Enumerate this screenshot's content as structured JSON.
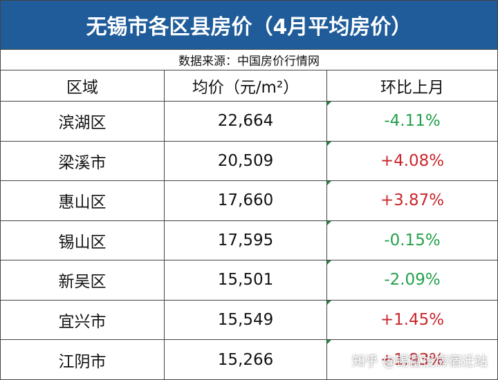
{
  "header": {
    "title": "无锡市各区县房价（4月平均房价）",
    "source": "数据来源：中国房价行情网"
  },
  "table": {
    "columns": [
      "区域",
      "均价（元/m²）",
      "环比上月"
    ],
    "rows": [
      [
        "滨湖区",
        "22,664",
        "-4.11%"
      ],
      [
        "梁溪市",
        "20,509",
        "+4.08%"
      ],
      [
        "惠山区",
        "17,660",
        "+3.87%"
      ],
      [
        "锡山区",
        "17,595",
        "-0.15%"
      ],
      [
        "新吴区",
        "15,501",
        "-2.09%"
      ],
      [
        "宜兴市",
        "15,549",
        "+1.45%"
      ],
      [
        "江阴市",
        "15,266",
        "+1.93%"
      ]
    ]
  },
  "watermark": "知乎 @锡富投房宿迁站"
}
